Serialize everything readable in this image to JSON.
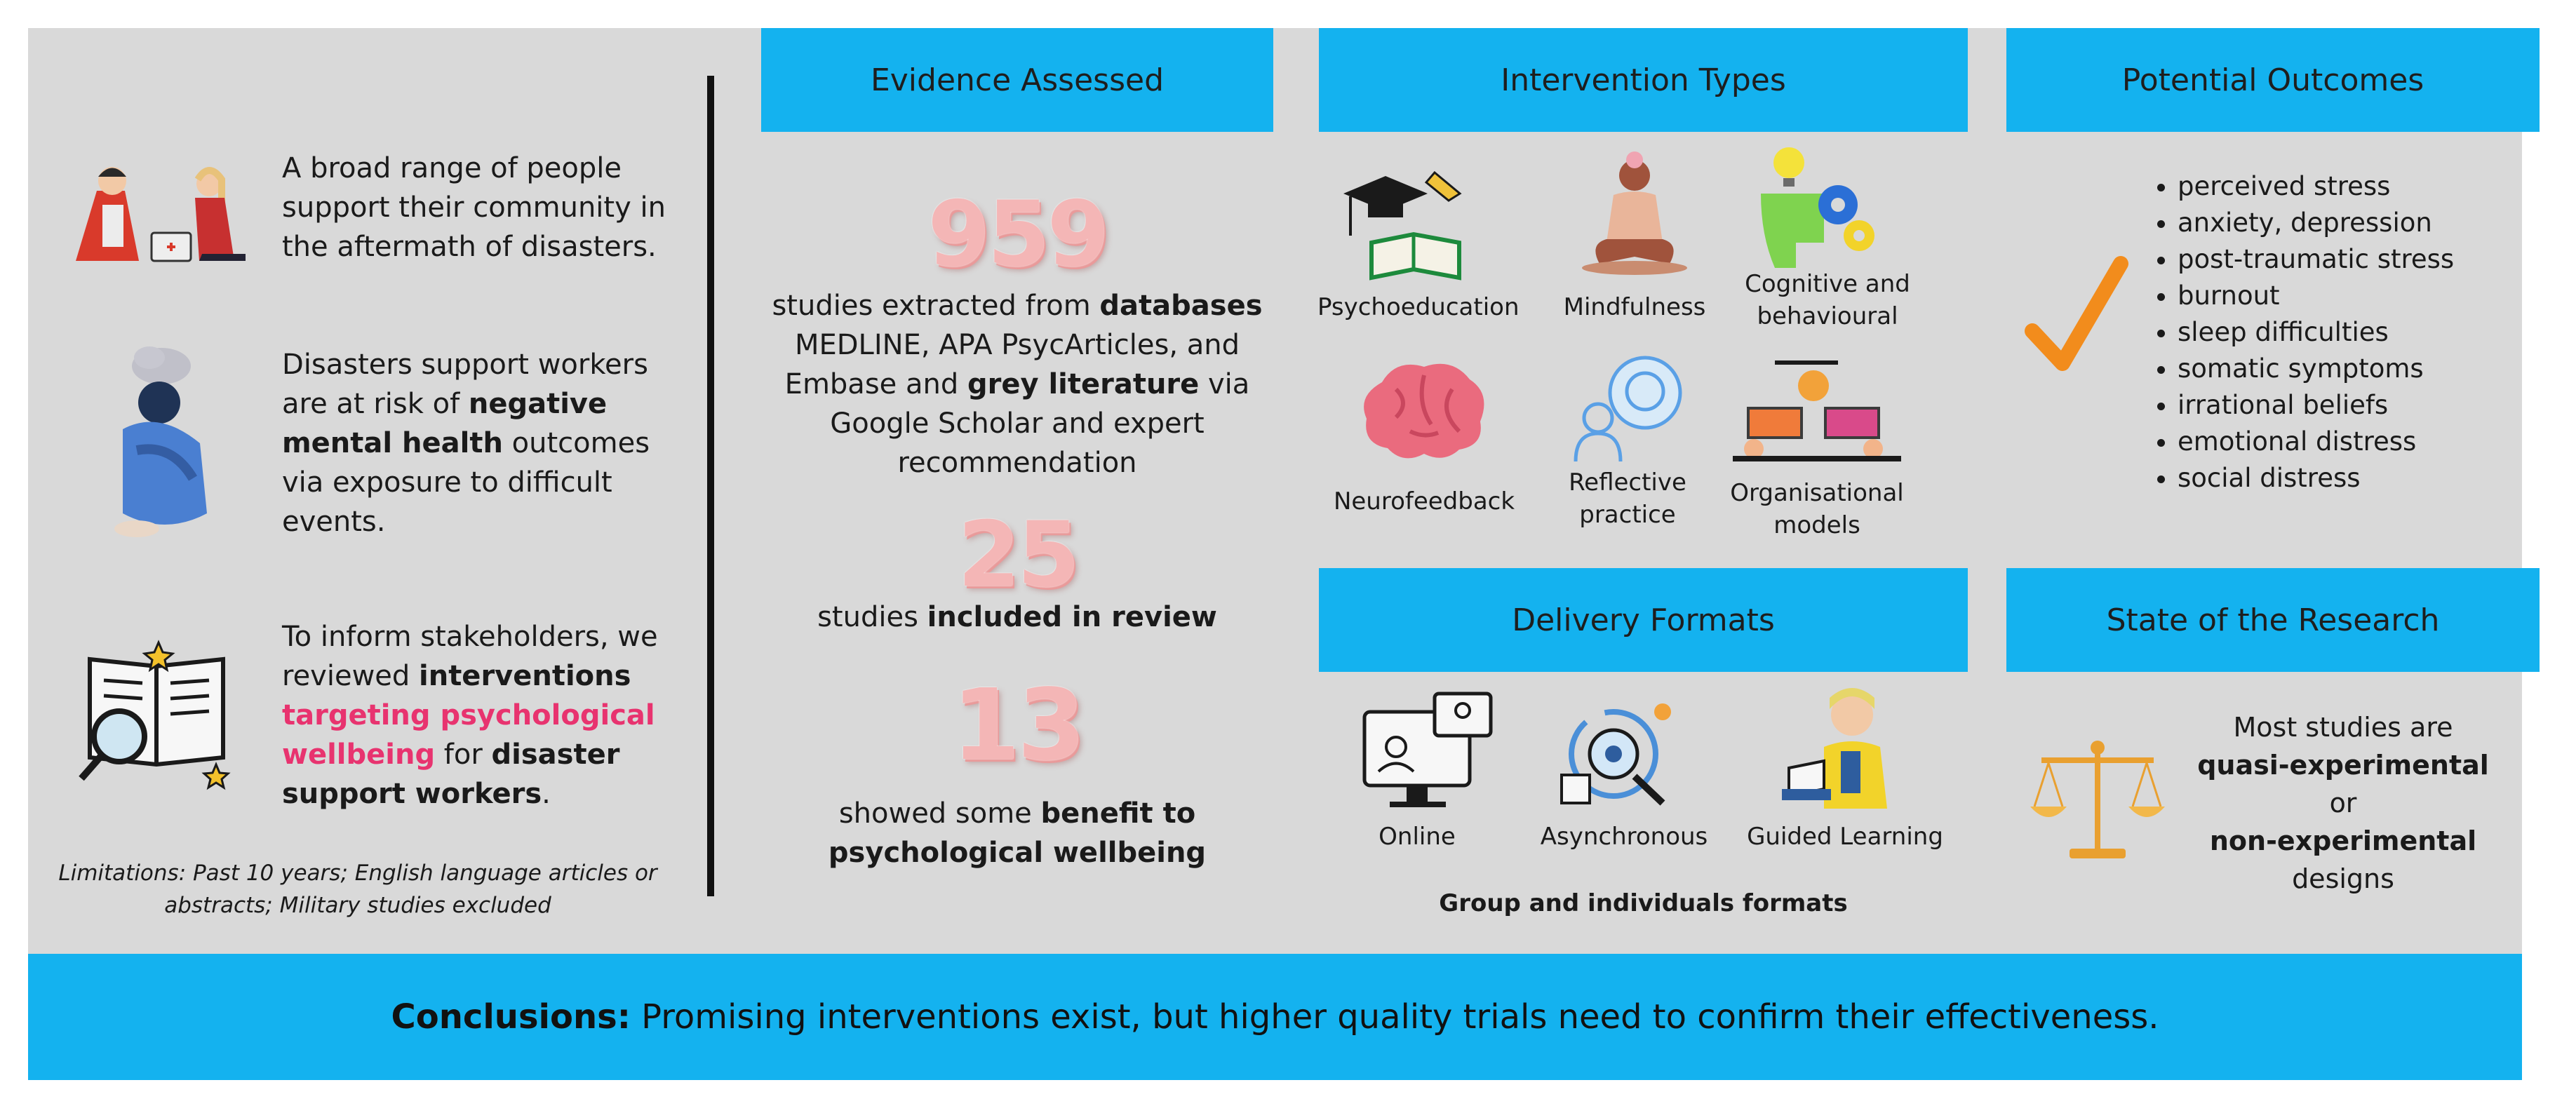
{
  "left": {
    "block1": {
      "text": "A broad range of people support their community in the aftermath of disasters."
    },
    "block2": {
      "pre": "Disasters support workers are  at risk of ",
      "bold": "negative mental health",
      "post": " outcomes via exposure to difficult events."
    },
    "block3": {
      "pre": "To inform stakeholders, we reviewed ",
      "bold1": "interventions",
      "pink": "targeting psychological wellbeing",
      "mid": " for ",
      "bold2": "disaster support workers",
      "post": "."
    },
    "limitations": "Limitations: Past 10 years; English language articles or abstracts; Military studies excluded"
  },
  "evidence": {
    "header": "Evidence Assessed",
    "n1": "959",
    "t1": {
      "pre": "studies extracted from ",
      "b1": "databases",
      "mid": " MEDLINE, APA PsycArticles, and Embase and ",
      "b2": "grey literature",
      "post": " via Google Scholar and expert recommendation"
    },
    "n2": "25",
    "t2": {
      "pre": "studies ",
      "b": "included in review"
    },
    "n3": "13",
    "t3": {
      "pre": "showed some ",
      "b": "benefit to psychological wellbeing"
    }
  },
  "interventions": {
    "header": "Intervention Types",
    "items": [
      "Psychoeducation",
      "Mindfulness",
      "Cognitive and behavioural",
      "Neurofeedback",
      "Reflective practice",
      "Organisational models"
    ]
  },
  "delivery": {
    "header": "Delivery Formats",
    "items": [
      "Online",
      "Asynchronous",
      "Guided Learning"
    ],
    "note": "Group and individuals formats"
  },
  "outcomes": {
    "header": "Potential Outcomes",
    "items": [
      "perceived stress",
      "anxiety, depression",
      "post-traumatic stress",
      "burnout",
      "sleep difficulties",
      "somatic symptoms",
      "irrational beliefs",
      "emotional distress",
      "social distress"
    ]
  },
  "research": {
    "header": "State of the Research",
    "line1": "Most studies are",
    "bold1": "quasi-experimental",
    "or": "or",
    "bold2": "non-experimental",
    "line2": "designs"
  },
  "conclusion": {
    "label": "Conclusions:",
    "text": " Promising interventions exist, but higher quality trials need to confirm their effectiveness."
  },
  "colors": {
    "header_bg": "#14b2ef",
    "panel_bg": "#d9d9d9",
    "accent_pink": "#e8336f",
    "check_orange": "#f28c1c"
  }
}
